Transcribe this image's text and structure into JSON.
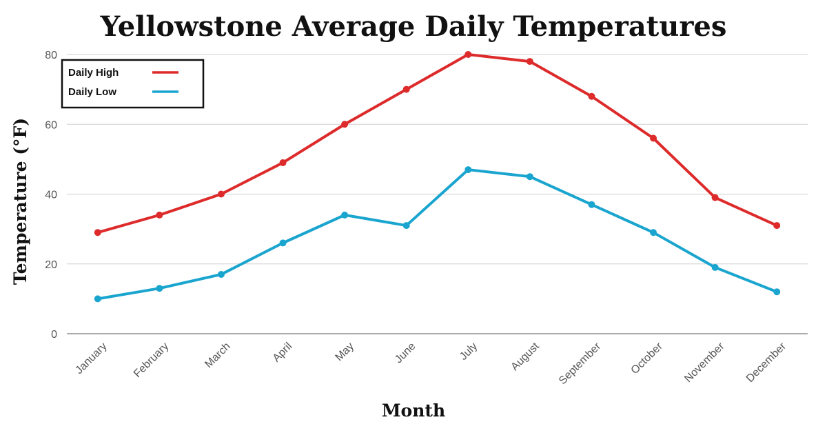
{
  "chart_data": {
    "type": "line",
    "title": "Yellowstone Average Daily Temperatures",
    "xlabel": "Month",
    "ylabel": "Temperature (°F)",
    "ylim": [
      0,
      80
    ],
    "yticks": [
      0,
      20,
      40,
      60,
      80
    ],
    "grid": true,
    "legend_position": "top-left",
    "categories": [
      "January",
      "February",
      "March",
      "April",
      "May",
      "June",
      "July",
      "August",
      "September",
      "October",
      "November",
      "December"
    ],
    "series": [
      {
        "name": "Daily High",
        "color": "#dd2a2a",
        "values": [
          29,
          34,
          40,
          49,
          60,
          70,
          80,
          78,
          68,
          56,
          39,
          31
        ]
      },
      {
        "name": "Daily Low",
        "color": "#1aa5cf",
        "values": [
          10,
          13,
          17,
          26,
          34,
          31,
          47,
          45,
          37,
          29,
          19,
          12
        ]
      }
    ]
  }
}
